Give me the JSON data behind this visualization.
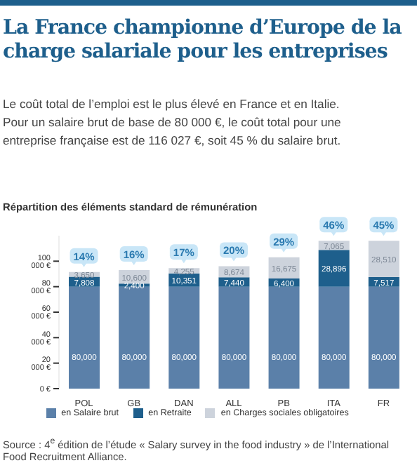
{
  "chart_data": {
    "type": "bar",
    "title": "La France championne d’Europe de la charge salariale pour les entreprises",
    "subtitle": "Le coût total de l’emploi est le plus élevé en France et en Italie. Pour un salaire brut de base de 80 000 €, le coût total pour une entreprise française est de 116 027 €, soit 45 % du salaire brut.",
    "categories": [
      "POL",
      "GB",
      "DAN",
      "ALL",
      "PB",
      "ITA",
      "FR"
    ],
    "stacked": true,
    "series": [
      {
        "name": "en Salaire brut",
        "color": "#5b80a9",
        "values": [
          80000,
          80000,
          80000,
          80000,
          80000,
          80000,
          80000
        ],
        "value_labels": [
          "80,000",
          "80,000",
          "80,000",
          "80,000",
          "80,000",
          "80,000",
          "80,000"
        ]
      },
      {
        "name": "en Retraite",
        "color": "#1e5f8c",
        "values": [
          7808,
          2400,
          10351,
          7440,
          6400,
          28896,
          7517
        ],
        "value_labels": [
          "7,808",
          "2,400",
          "10,351",
          "7,440",
          "6,400",
          "28,896",
          "7,517"
        ]
      },
      {
        "name": "en Charges sociales obligatoires",
        "color": "#cdd3dc",
        "values": [
          3650,
          10600,
          4255,
          8674,
          16675,
          7065,
          28510
        ],
        "value_labels": [
          "3,650",
          "10,600",
          "4,255",
          "8,674",
          "16,675",
          "7,065",
          "28,510"
        ]
      }
    ],
    "ylim": [
      0,
      120000
    ],
    "yticks": [
      {
        "value": 0,
        "label": "0 €"
      },
      {
        "value": 20000,
        "label": "20 000 €"
      },
      {
        "value": 40000,
        "label": "40 000 €"
      },
      {
        "value": 60000,
        "label": "60 000 €"
      },
      {
        "value": 80000,
        "label": "80 000 €"
      },
      {
        "value": 100000,
        "label": "100 000 €"
      }
    ],
    "grid": false,
    "legend": "bottom",
    "annotations": [
      "Répartition des éléments standard de rémunération",
      {
        "text": "14%",
        "x": "POL",
        "y": 91458
      },
      {
        "text": "16%",
        "x": "GB",
        "y": 93000
      },
      {
        "text": "17%",
        "x": "DAN",
        "y": 94606
      },
      {
        "text": "20%",
        "x": "ALL",
        "y": 96114
      },
      {
        "text": "29%",
        "x": "PB",
        "y": 103075
      },
      {
        "text": "46%",
        "x": "ITA",
        "y": 115961
      },
      {
        "text": "45%",
        "x": "FR",
        "y": 116027
      },
      "Source : 4$^{e}$ édition de l’étude « Salary survey in the food industry » de l’International Food Recruitment Alliance."
    ]
  }
}
